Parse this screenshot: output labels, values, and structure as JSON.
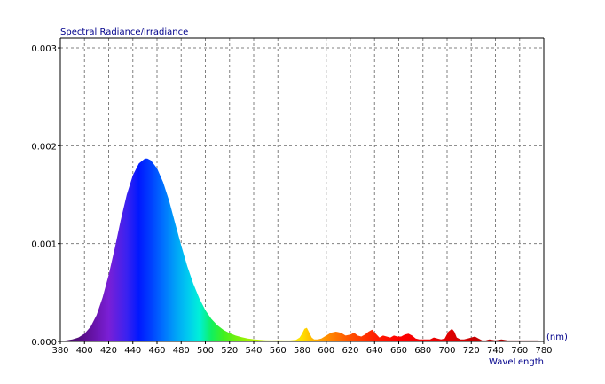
{
  "chart_data": {
    "type": "area",
    "title": "",
    "ylabel": "Spectral Radiance/Irradiance",
    "xlabel": "WaveLength",
    "x_unit": "(nm)",
    "xlim": [
      380,
      780
    ],
    "ylim": [
      0,
      0.0031
    ],
    "x_ticks": [
      380,
      400,
      420,
      440,
      460,
      480,
      500,
      520,
      540,
      560,
      580,
      600,
      620,
      640,
      660,
      680,
      700,
      720,
      740,
      760,
      780
    ],
    "y_ticks": [
      0.0,
      0.001,
      0.002,
      0.003
    ],
    "y_tick_labels": [
      "0.000",
      "0.001",
      "0.002",
      "0.003"
    ],
    "grid": true,
    "fill": "wavelength-spectrum-colors",
    "series": [
      {
        "x": [
          380,
          385,
          390,
          395,
          400,
          405,
          410,
          415,
          420,
          425,
          430,
          435,
          440,
          445,
          450,
          452,
          455,
          460,
          465,
          470,
          475,
          480,
          485,
          490,
          495,
          500,
          505,
          510,
          515,
          520,
          525,
          530,
          535,
          540,
          545,
          550,
          555,
          560,
          565,
          570,
          575,
          578,
          580,
          582,
          584,
          586,
          588,
          590,
          593,
          596,
          600,
          604,
          608,
          612,
          616,
          620,
          623,
          626,
          629,
          632,
          635,
          638,
          641,
          644,
          647,
          650,
          653,
          656,
          659,
          662,
          665,
          668,
          671,
          674,
          677,
          680,
          683,
          686,
          689,
          692,
          695,
          698,
          701,
          704,
          706,
          708,
          711,
          714,
          717,
          720,
          723,
          726,
          729,
          732,
          735,
          740,
          745,
          750,
          755,
          760,
          765,
          770,
          775,
          780
        ],
        "y": [
          5e-06,
          1e-05,
          2e-05,
          4e-05,
          8e-05,
          0.00015,
          0.00027,
          0.00045,
          0.00068,
          0.00095,
          0.00124,
          0.0015,
          0.0017,
          0.00182,
          0.00187,
          0.00187,
          0.00185,
          0.00177,
          0.00163,
          0.00144,
          0.00121,
          0.00098,
          0.00077,
          0.00059,
          0.00044,
          0.00032,
          0.00023,
          0.000165,
          0.000118,
          8.5e-05,
          6e-05,
          4.3e-05,
          3e-05,
          2.2e-05,
          1.6e-05,
          1.2e-05,
          1e-05,
          1.2e-05,
          1e-05,
          1e-05,
          1.5e-05,
          4e-05,
          8e-05,
          0.00013,
          0.00014,
          9e-05,
          4e-05,
          2e-05,
          2e-05,
          3e-05,
          6e-05,
          9e-05,
          0.0001,
          9e-05,
          6e-05,
          7e-05,
          9e-05,
          6e-05,
          5e-05,
          7e-05,
          0.0001,
          0.00012,
          8e-05,
          4e-05,
          6e-05,
          5e-05,
          4e-05,
          6e-05,
          5e-05,
          5e-05,
          7e-05,
          8e-05,
          6e-05,
          3e-05,
          2e-05,
          2e-05,
          2e-05,
          2e-05,
          4e-05,
          3e-05,
          2e-05,
          3e-05,
          0.0001,
          0.00013,
          0.0001,
          4e-05,
          2e-05,
          2e-05,
          3e-05,
          4e-05,
          5e-05,
          3e-05,
          1e-05,
          1e-05,
          2e-05,
          1e-05,
          2e-05,
          1e-05,
          1e-05,
          1e-05,
          1e-05,
          1e-05,
          1e-05,
          5e-06
        ]
      }
    ]
  }
}
